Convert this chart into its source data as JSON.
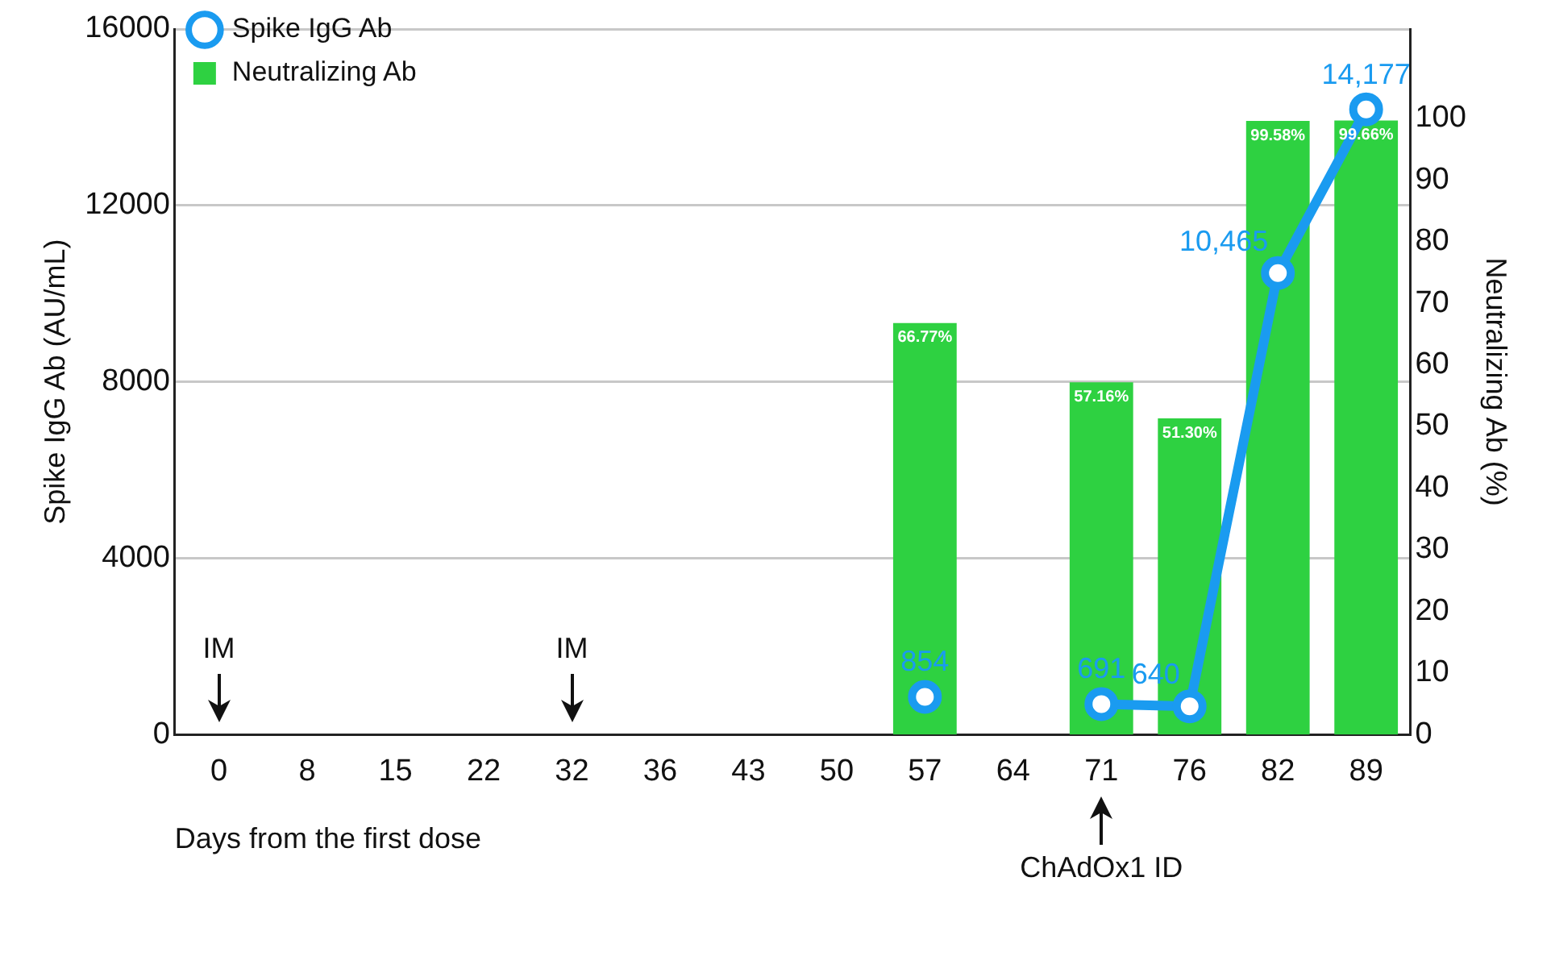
{
  "chart_data": {
    "type": "bar",
    "xlabel": "Days from the first dose",
    "ylabel": "Spike IgG Ab (AU/mL)",
    "y2label": "Neutralizing Ab (%)",
    "categories": [
      "0",
      "8",
      "15",
      "22",
      "32",
      "36",
      "43",
      "50",
      "57",
      "64",
      "71",
      "76",
      "82",
      "89"
    ],
    "series": [
      {
        "name": "Spike IgG Ab",
        "type": "line",
        "axis": "y",
        "color": "#1a9bf0",
        "values": [
          null,
          null,
          null,
          null,
          null,
          null,
          null,
          null,
          854,
          null,
          691,
          640,
          10465,
          14177
        ],
        "value_labels": [
          null,
          null,
          null,
          null,
          null,
          null,
          null,
          null,
          "854",
          null,
          "691",
          "640",
          "10,465",
          "14,177"
        ]
      },
      {
        "name": "Neutralizing Ab",
        "axis": "y2",
        "color": "#2ed141",
        "values": [
          null,
          null,
          null,
          null,
          null,
          null,
          null,
          null,
          66.77,
          null,
          57.16,
          51.3,
          99.58,
          99.66
        ],
        "value_labels": [
          null,
          null,
          null,
          null,
          null,
          null,
          null,
          null,
          "66.77%",
          null,
          "57.16%",
          "51.30%",
          "99.58%",
          "99.66%"
        ]
      }
    ],
    "ylim": [
      0,
      16000
    ],
    "yticks": [
      0,
      4000,
      8000,
      12000,
      16000
    ],
    "y2lim": [
      0,
      114.5
    ],
    "y2ticks": [
      0,
      10,
      20,
      30,
      40,
      50,
      60,
      70,
      80,
      90,
      100
    ],
    "grid": "y",
    "legend": "top left",
    "marker": "circle",
    "annotations": [
      "IM",
      "IM",
      "ChAdOx1 ID"
    ]
  }
}
